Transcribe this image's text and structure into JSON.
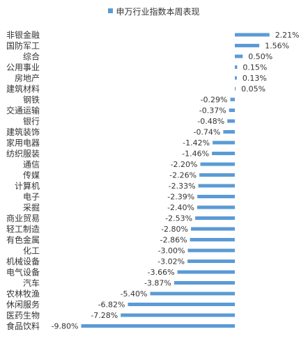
{
  "chart_data": {
    "type": "bar",
    "orientation": "horizontal",
    "legend": {
      "position": "top-center"
    },
    "grid": false,
    "xlim": [
      -10.5,
      2.5
    ],
    "color": "#5B9BD5",
    "series": [
      {
        "name": "申万行业指数本周表现"
      }
    ],
    "categories": [
      "非银金融",
      "国防军工",
      "综合",
      "公用事业",
      "房地产",
      "建筑材料",
      "钢铁",
      "交通运输",
      "银行",
      "建筑装饰",
      "家用电器",
      "纺织服装",
      "通信",
      "传媒",
      "计算机",
      "电子",
      "采掘",
      "商业贸易",
      "轻工制造",
      "有色金属",
      "化工",
      "机械设备",
      "电气设备",
      "汽车",
      "农林牧渔",
      "休闲服务",
      "医药生物",
      "食品饮料"
    ],
    "values": [
      2.21,
      1.56,
      0.5,
      0.15,
      0.13,
      0.05,
      -0.29,
      -0.37,
      -0.48,
      -0.74,
      -1.42,
      -1.46,
      -2.2,
      -2.26,
      -2.33,
      -2.39,
      -2.4,
      -2.53,
      -2.8,
      -2.86,
      -3.0,
      -3.02,
      -3.66,
      -3.87,
      -5.4,
      -6.82,
      -7.28,
      -9.8
    ],
    "value_labels": [
      "2.21%",
      "1.56%",
      "0.50%",
      "0.15%",
      "0.13%",
      "0.05%",
      "-0.29%",
      "-0.37%",
      "-0.48%",
      "-0.74%",
      "-1.42%",
      "-1.46%",
      "-2.20%",
      "-2.26%",
      "-2.33%",
      "-2.39%",
      "-2.40%",
      "-2.53%",
      "-2.80%",
      "-2.86%",
      "-3.00%",
      "-3.02%",
      "-3.66%",
      "-3.87%",
      "-5.40%",
      "-6.82%",
      "-7.28%",
      "-9.80%"
    ]
  }
}
